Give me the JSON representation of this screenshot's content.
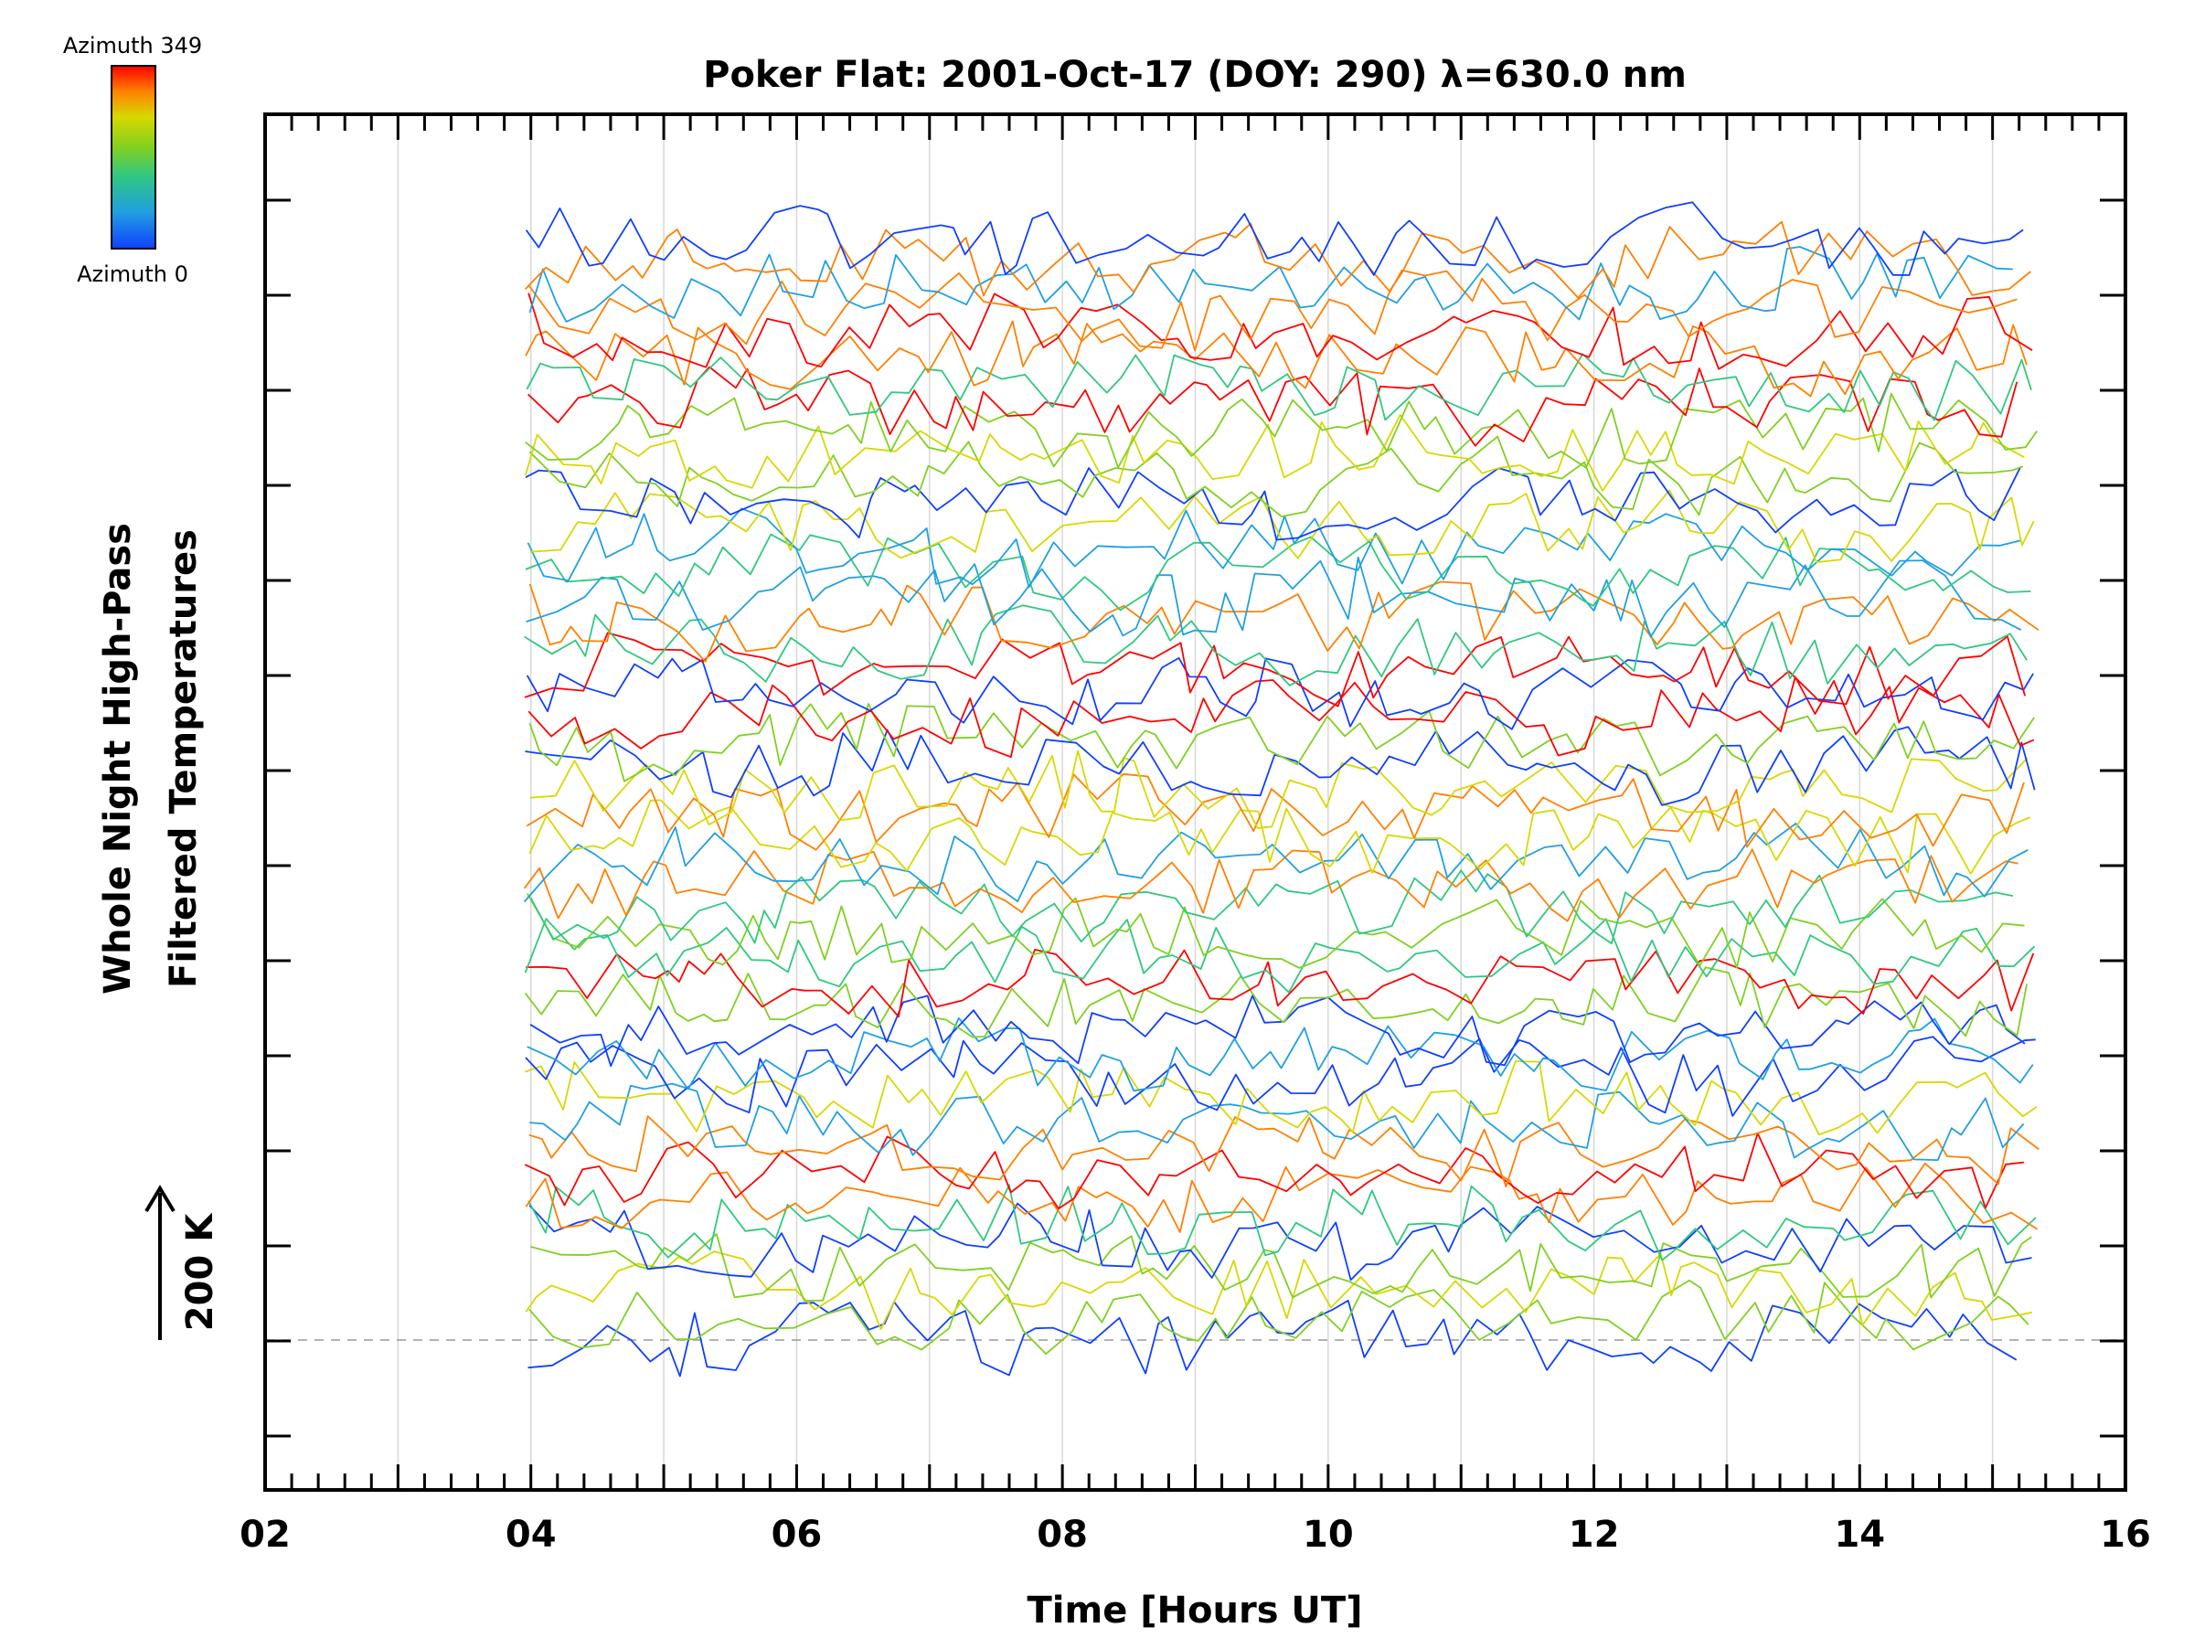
{
  "chart_data": {
    "type": "line",
    "title": "Poker Flat: 2001-Oct-17 (DOY: 290) λ=630.0 nm",
    "xlabel": "Time [Hours UT]",
    "ylabel_line1": "Whole Night High-Pass",
    "ylabel_line2": "Filtered Temperatures",
    "scale_label": "200 K",
    "x_tick_labels": [
      "02",
      "04",
      "06",
      "08",
      "10",
      "12",
      "14",
      "16"
    ],
    "xlim": [
      2,
      16
    ],
    "x_data_range": [
      3.95,
      15.35
    ],
    "colorbar": {
      "top_label": "Azimuth 349",
      "bottom_label": "Azimuth 0",
      "colors": [
        "#ff0000",
        "#ff8000",
        "#d8d800",
        "#80d020",
        "#30c880",
        "#20a0e0",
        "#1040ff"
      ]
    },
    "n_series": 47,
    "baseline_offset": 0,
    "grid": true,
    "legend": "colorbar top-left"
  }
}
